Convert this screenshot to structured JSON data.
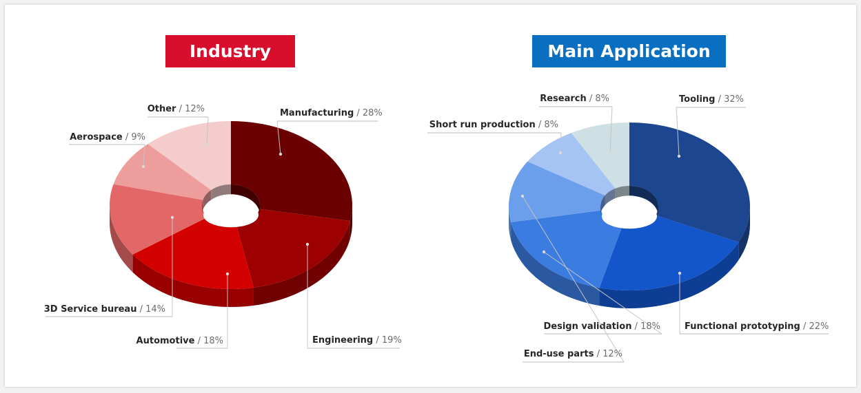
{
  "chart_data": [
    {
      "type": "pie",
      "title": "Industry",
      "title_color": "#d80f2c",
      "slices": [
        {
          "label": "Manufacturing",
          "value": 28,
          "value_text": "28%",
          "color": "#6a0000"
        },
        {
          "label": "Engineering",
          "value": 19,
          "value_text": "19%",
          "color": "#9d0000"
        },
        {
          "label": "Automotive",
          "value": 18,
          "value_text": "18%",
          "color": "#d30000"
        },
        {
          "label": "3D Service bureau",
          "value": 14,
          "value_text": "14%",
          "color": "#e46767"
        },
        {
          "label": "Aerospace",
          "value": 9,
          "value_text": "9%",
          "color": "#ee9d9d"
        },
        {
          "label": "Other",
          "value": 12,
          "value_text": "12%",
          "color": "#f4cccc"
        }
      ]
    },
    {
      "type": "pie",
      "title": "Main Application",
      "title_color": "#0a6fc1",
      "slices": [
        {
          "label": "Tooling",
          "value": 32,
          "value_text": "32%",
          "color": "#1c4690"
        },
        {
          "label": "Functional prototyping",
          "value": 22,
          "value_text": "22%",
          "color": "#1356cc"
        },
        {
          "label": "Design validation",
          "value": 18,
          "value_text": "18%",
          "color": "#3b7ce0"
        },
        {
          "label": "End-use parts",
          "value": 12,
          "value_text": "12%",
          "color": "#6b9fec"
        },
        {
          "label": "Short run production",
          "value": 8,
          "value_text": "8%",
          "color": "#a6c4f3"
        },
        {
          "label": "Research",
          "value": 8,
          "value_text": "8%",
          "color": "#cfe0e5"
        }
      ]
    }
  ]
}
